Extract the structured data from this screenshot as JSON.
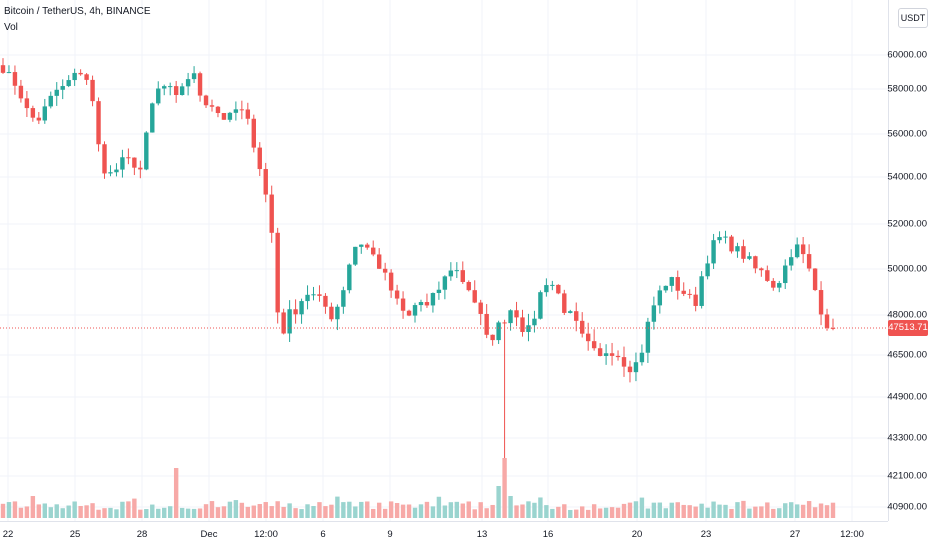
{
  "header": {
    "title": "Bitcoin / TetherUS, 4h, BINANCE",
    "volume_label": "Vol"
  },
  "currency": {
    "label": "USDT"
  },
  "colors": {
    "up": "#26a69a",
    "down": "#ef5350",
    "up_vol": "#9ad4cf",
    "down_vol": "#f7a9a7",
    "grid": "#f0f3fa"
  },
  "current_price": {
    "label": "47513.71",
    "value": 47513.71
  },
  "chart_data": {
    "type": "candlestick",
    "title": "Bitcoin / TetherUS, 4h, BINANCE",
    "price_axis_ticks": [
      {
        "label": "60000.00",
        "value": 60000
      },
      {
        "label": "58000.00",
        "value": 58000
      },
      {
        "label": "56000.00",
        "value": 56000
      },
      {
        "label": "54000.00",
        "value": 54000
      },
      {
        "label": "52000.00",
        "value": 52000
      },
      {
        "label": "50000.00",
        "value": 50000
      },
      {
        "label": "48000.00",
        "value": 48000
      },
      {
        "label": "46500.00",
        "value": 46500
      },
      {
        "label": "44900.00",
        "value": 44900
      },
      {
        "label": "43300.00",
        "value": 43300
      },
      {
        "label": "42100.00",
        "value": 42100
      },
      {
        "label": "40900.00",
        "value": 40900
      }
    ],
    "time_axis_ticks": [
      "22",
      "25",
      "28",
      "Dec",
      "12:00",
      "6",
      "9",
      "13",
      "16",
      "20",
      "23",
      "27",
      "12:00"
    ],
    "close_path": [
      59200,
      58600,
      57800,
      56800,
      56600,
      57200,
      57900,
      58100,
      58700,
      59000,
      58400,
      55500,
      54000,
      54300,
      54800,
      54700,
      54300,
      57000,
      58000,
      58200,
      57500,
      58500,
      58900,
      57500,
      57400,
      56900,
      56600,
      57100,
      56900,
      55600,
      54000,
      52000,
      47000,
      48000,
      48300,
      49000,
      48800,
      48500,
      48000,
      48600,
      50200,
      51300,
      51000,
      50500,
      49800,
      49000,
      48200,
      47900,
      48700,
      48300,
      48900,
      49500,
      50200,
      49600,
      49100,
      48200,
      47000,
      47400,
      47900,
      48400,
      47600,
      47300,
      48800,
      49600,
      49100,
      48200,
      47800,
      47100,
      46700,
      46300,
      46800,
      46600,
      46200,
      46000,
      46800,
      48200,
      49000,
      49600,
      49200,
      48900,
      48400,
      50000,
      51000,
      51400,
      51100,
      50800,
      50500,
      50000,
      49800,
      49300,
      49600,
      50700,
      51000,
      50200,
      49000,
      47800,
      47513.71
    ]
  }
}
